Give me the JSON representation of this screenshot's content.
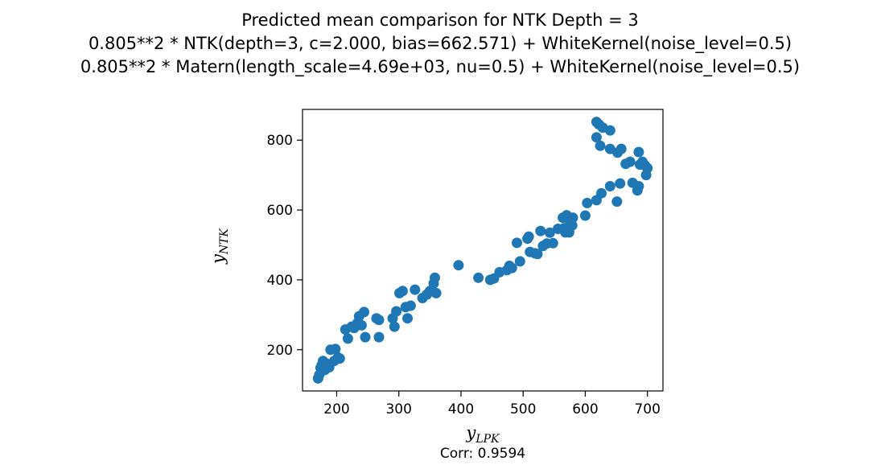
{
  "chart_data": {
    "type": "scatter",
    "title_lines": [
      "Predicted mean comparison for NTK Depth = 3",
      "0.805**2 * NTK(depth=3, c=2.000, bias=662.571) + WhiteKernel(noise_level=0.5)",
      "0.805**2 * Matern(length_scale=4.69e+03, nu=0.5) + WhiteKernel(noise_level=0.5)"
    ],
    "xlabel": {
      "base": "y",
      "sub": "LPK"
    },
    "ylabel": {
      "base": "y",
      "sub": "NTK"
    },
    "caption": "Corr: 0.9594",
    "xlim": [
      145,
      725
    ],
    "ylim": [
      82,
      888
    ],
    "xticks": [
      200,
      300,
      400,
      500,
      600,
      700
    ],
    "yticks": [
      200,
      400,
      600,
      800
    ],
    "grid": false,
    "marker_color": "#1f77b4",
    "points": [
      [
        170,
        118
      ],
      [
        172,
        128
      ],
      [
        174,
        148
      ],
      [
        176,
        156
      ],
      [
        178,
        168
      ],
      [
        181,
        142
      ],
      [
        184,
        160
      ],
      [
        188,
        150
      ],
      [
        190,
        200
      ],
      [
        196,
        168
      ],
      [
        198,
        202
      ],
      [
        202,
        178
      ],
      [
        205,
        175
      ],
      [
        214,
        258
      ],
      [
        218,
        232
      ],
      [
        224,
        266
      ],
      [
        228,
        262
      ],
      [
        233,
        276
      ],
      [
        236,
        296
      ],
      [
        240,
        270
      ],
      [
        244,
        308
      ],
      [
        246,
        236
      ],
      [
        264,
        290
      ],
      [
        268,
        285
      ],
      [
        268,
        236
      ],
      [
        290,
        290
      ],
      [
        293,
        266
      ],
      [
        296,
        310
      ],
      [
        301,
        362
      ],
      [
        306,
        368
      ],
      [
        311,
        322
      ],
      [
        314,
        290
      ],
      [
        319,
        326
      ],
      [
        326,
        372
      ],
      [
        338,
        348
      ],
      [
        345,
        358
      ],
      [
        350,
        368
      ],
      [
        356,
        390
      ],
      [
        358,
        406
      ],
      [
        360,
        362
      ],
      [
        396,
        442
      ],
      [
        428,
        406
      ],
      [
        447,
        400
      ],
      [
        453,
        404
      ],
      [
        462,
        422
      ],
      [
        474,
        428
      ],
      [
        478,
        440
      ],
      [
        482,
        434
      ],
      [
        490,
        506
      ],
      [
        495,
        453
      ],
      [
        507,
        518
      ],
      [
        509,
        524
      ],
      [
        511,
        480
      ],
      [
        519,
        476
      ],
      [
        523,
        474
      ],
      [
        528,
        540
      ],
      [
        532,
        497
      ],
      [
        538,
        504
      ],
      [
        543,
        535
      ],
      [
        548,
        505
      ],
      [
        556,
        546
      ],
      [
        564,
        578
      ],
      [
        566,
        548
      ],
      [
        568,
        536
      ],
      [
        570,
        585
      ],
      [
        574,
        536
      ],
      [
        576,
        566
      ],
      [
        579,
        556
      ],
      [
        580,
        578
      ],
      [
        600,
        584
      ],
      [
        603,
        620
      ],
      [
        618,
        628
      ],
      [
        626,
        648
      ],
      [
        640,
        668
      ],
      [
        651,
        624
      ],
      [
        656,
        676
      ],
      [
        665,
        732
      ],
      [
        672,
        738
      ],
      [
        676,
        678
      ],
      [
        684,
        656
      ],
      [
        686,
        668
      ],
      [
        688,
        730
      ],
      [
        692,
        738
      ],
      [
        696,
        728
      ],
      [
        698,
        700
      ],
      [
        700,
        720
      ],
      [
        686,
        766
      ],
      [
        658,
        775
      ],
      [
        652,
        764
      ],
      [
        640,
        775
      ],
      [
        640,
        828
      ],
      [
        628,
        836
      ],
      [
        624,
        784
      ],
      [
        622,
        845
      ],
      [
        618,
        808
      ],
      [
        618,
        852
      ]
    ]
  }
}
